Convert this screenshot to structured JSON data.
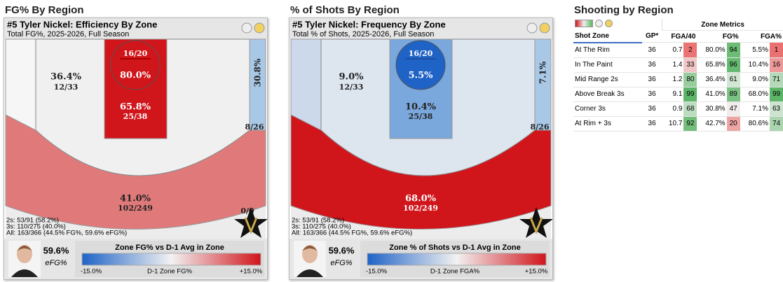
{
  "panels": [
    {
      "heading": "FG% By Region",
      "title": "#5 Tyler Nickel: Efficiency By Zone",
      "subtitle": "Total FG%, 2025-2026, Full Season",
      "zones": {
        "rim": {
          "ratio": "16/20",
          "pct": "80.0%"
        },
        "paint": {
          "pct": "65.8%",
          "ratio": "25/38"
        },
        "mid_range": {
          "pct": "36.4%",
          "ratio": "12/33"
        },
        "corner": {
          "pct": "30.8%",
          "ratio": "8/26"
        },
        "corner_left": {
          "ratio": "0/0"
        },
        "above_break": {
          "pct": "41.0%",
          "ratio": "102/249"
        }
      },
      "summary": [
        "2s: 53/91 (58.2%)",
        "3s: 110/275 (40.0%)",
        "All: 163/366 (44.5% FG%, 59.6% eFG%)"
      ],
      "efg": "59.6%",
      "efg_label": "eFG%",
      "legend_title": "Zone FG% vs D-1 Avg in Zone",
      "legend_min": "-15.0%",
      "legend_mid": "D-1 Zone FG%",
      "legend_max": "+15.0%"
    },
    {
      "heading": "% of Shots By Region",
      "title": "#5 Tyler Nickel: Frequency By Zone",
      "subtitle": "Total % of Shots, 2025-2026, Full Season",
      "zones": {
        "rim": {
          "ratio": "16/20",
          "pct": "5.5%"
        },
        "paint": {
          "pct": "10.4%",
          "ratio": "25/38"
        },
        "mid_range": {
          "pct": "9.0%",
          "ratio": "12/33"
        },
        "corner": {
          "pct": "7.1%",
          "ratio": "8/26"
        },
        "above_break": {
          "pct": "68.0%",
          "ratio": "102/249"
        }
      },
      "summary": [
        "2s: 53/91 (58.2%)",
        "3s: 110/275 (40.0%)",
        "All: 163/366 (44.5% FG%, 59.6% eFG%)"
      ],
      "efg": "59.6%",
      "efg_label": "eFG%",
      "legend_title": "Zone % of Shots vs D-1 Avg in Zone",
      "legend_min": "-15.0%",
      "legend_mid": "D-1 Zone FGA%",
      "legend_max": "+15.0%"
    }
  ],
  "table": {
    "title": "Shooting by Region",
    "group_header": "Zone Metrics",
    "columns": [
      "Shot Zone",
      "GP*",
      "FGA/40",
      "FG%",
      "FGA%"
    ],
    "rows": [
      [
        "At The Rim",
        "36",
        "0.7",
        2,
        "80.0%",
        94,
        "5.5%",
        1
      ],
      [
        "In The Paint",
        "36",
        "1.4",
        33,
        "65.8%",
        96,
        "10.4%",
        16
      ],
      [
        "Mid Range 2s",
        "36",
        "1.2",
        80,
        "36.4%",
        61,
        "9.0%",
        71
      ],
      [
        "Above Break 3s",
        "36",
        "9.1",
        99,
        "41.0%",
        89,
        "68.0%",
        99
      ],
      [
        "Corner 3s",
        "36",
        "0.9",
        68,
        "30.8%",
        47,
        "7.1%",
        63
      ],
      [
        "At Rim + 3s",
        "36",
        "10.7",
        92,
        "42.7%",
        20,
        "80.6%",
        74
      ]
    ]
  }
}
